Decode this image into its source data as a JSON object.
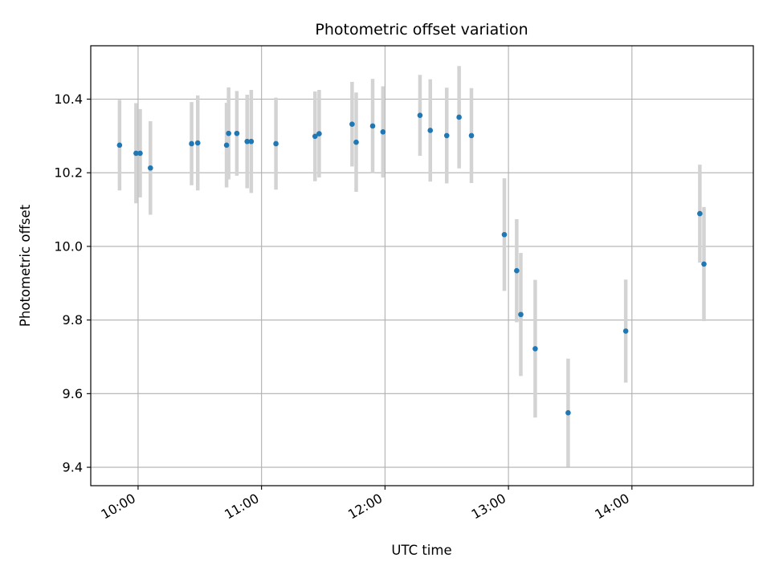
{
  "chart_data": {
    "type": "scatter",
    "title": "Photometric offset variation",
    "xlabel": "UTC time",
    "ylabel": "Photometric offset",
    "x_unit": "UTC time (HH:MM)",
    "xlim": [
      "09:37",
      "14:59"
    ],
    "ylim": [
      9.35,
      10.545
    ],
    "grid": true,
    "x_ticks": [
      "10:00",
      "11:00",
      "12:00",
      "13:00",
      "14:00"
    ],
    "y_ticks": [
      9.4,
      9.6,
      9.8,
      10.0,
      10.2,
      10.4
    ],
    "y_tick_labels": [
      "9.4",
      "9.6",
      "9.8",
      "10.0",
      "10.2",
      "10.4"
    ],
    "marker_color": "#1f77b4",
    "errorbar_color": "#d3d3d3",
    "points": [
      {
        "x": "09:51",
        "y": 10.275,
        "err": 0.123
      },
      {
        "x": "09:59",
        "y": 10.253,
        "err": 0.136
      },
      {
        "x": "10:01",
        "y": 10.253,
        "err": 0.12
      },
      {
        "x": "10:06",
        "y": 10.213,
        "err": 0.127
      },
      {
        "x": "10:26",
        "y": 10.279,
        "err": 0.113
      },
      {
        "x": "10:29",
        "y": 10.281,
        "err": 0.129
      },
      {
        "x": "10:43",
        "y": 10.275,
        "err": 0.115
      },
      {
        "x": "10:44",
        "y": 10.307,
        "err": 0.125
      },
      {
        "x": "10:48",
        "y": 10.307,
        "err": 0.115
      },
      {
        "x": "10:53",
        "y": 10.285,
        "err": 0.127
      },
      {
        "x": "10:55",
        "y": 10.285,
        "err": 0.14
      },
      {
        "x": "11:07",
        "y": 10.279,
        "err": 0.125
      },
      {
        "x": "11:26",
        "y": 10.299,
        "err": 0.122
      },
      {
        "x": "11:28",
        "y": 10.306,
        "err": 0.119
      },
      {
        "x": "11:44",
        "y": 10.332,
        "err": 0.115
      },
      {
        "x": "11:46",
        "y": 10.283,
        "err": 0.135
      },
      {
        "x": "11:54",
        "y": 10.327,
        "err": 0.128
      },
      {
        "x": "11:59",
        "y": 10.311,
        "err": 0.124
      },
      {
        "x": "12:17",
        "y": 10.356,
        "err": 0.11
      },
      {
        "x": "12:22",
        "y": 10.315,
        "err": 0.139
      },
      {
        "x": "12:30",
        "y": 10.301,
        "err": 0.13
      },
      {
        "x": "12:36",
        "y": 10.351,
        "err": 0.139
      },
      {
        "x": "12:42",
        "y": 10.301,
        "err": 0.129
      },
      {
        "x": "12:58",
        "y": 10.032,
        "err": 0.153
      },
      {
        "x": "13:04",
        "y": 9.934,
        "err": 0.14
      },
      {
        "x": "13:06",
        "y": 9.815,
        "err": 0.167
      },
      {
        "x": "13:13",
        "y": 9.722,
        "err": 0.187
      },
      {
        "x": "13:29",
        "y": 9.548,
        "err": 0.147
      },
      {
        "x": "13:57",
        "y": 9.77,
        "err": 0.14
      },
      {
        "x": "14:33",
        "y": 10.089,
        "err": 0.133
      },
      {
        "x": "14:35",
        "y": 9.952,
        "err": 0.155
      }
    ]
  }
}
